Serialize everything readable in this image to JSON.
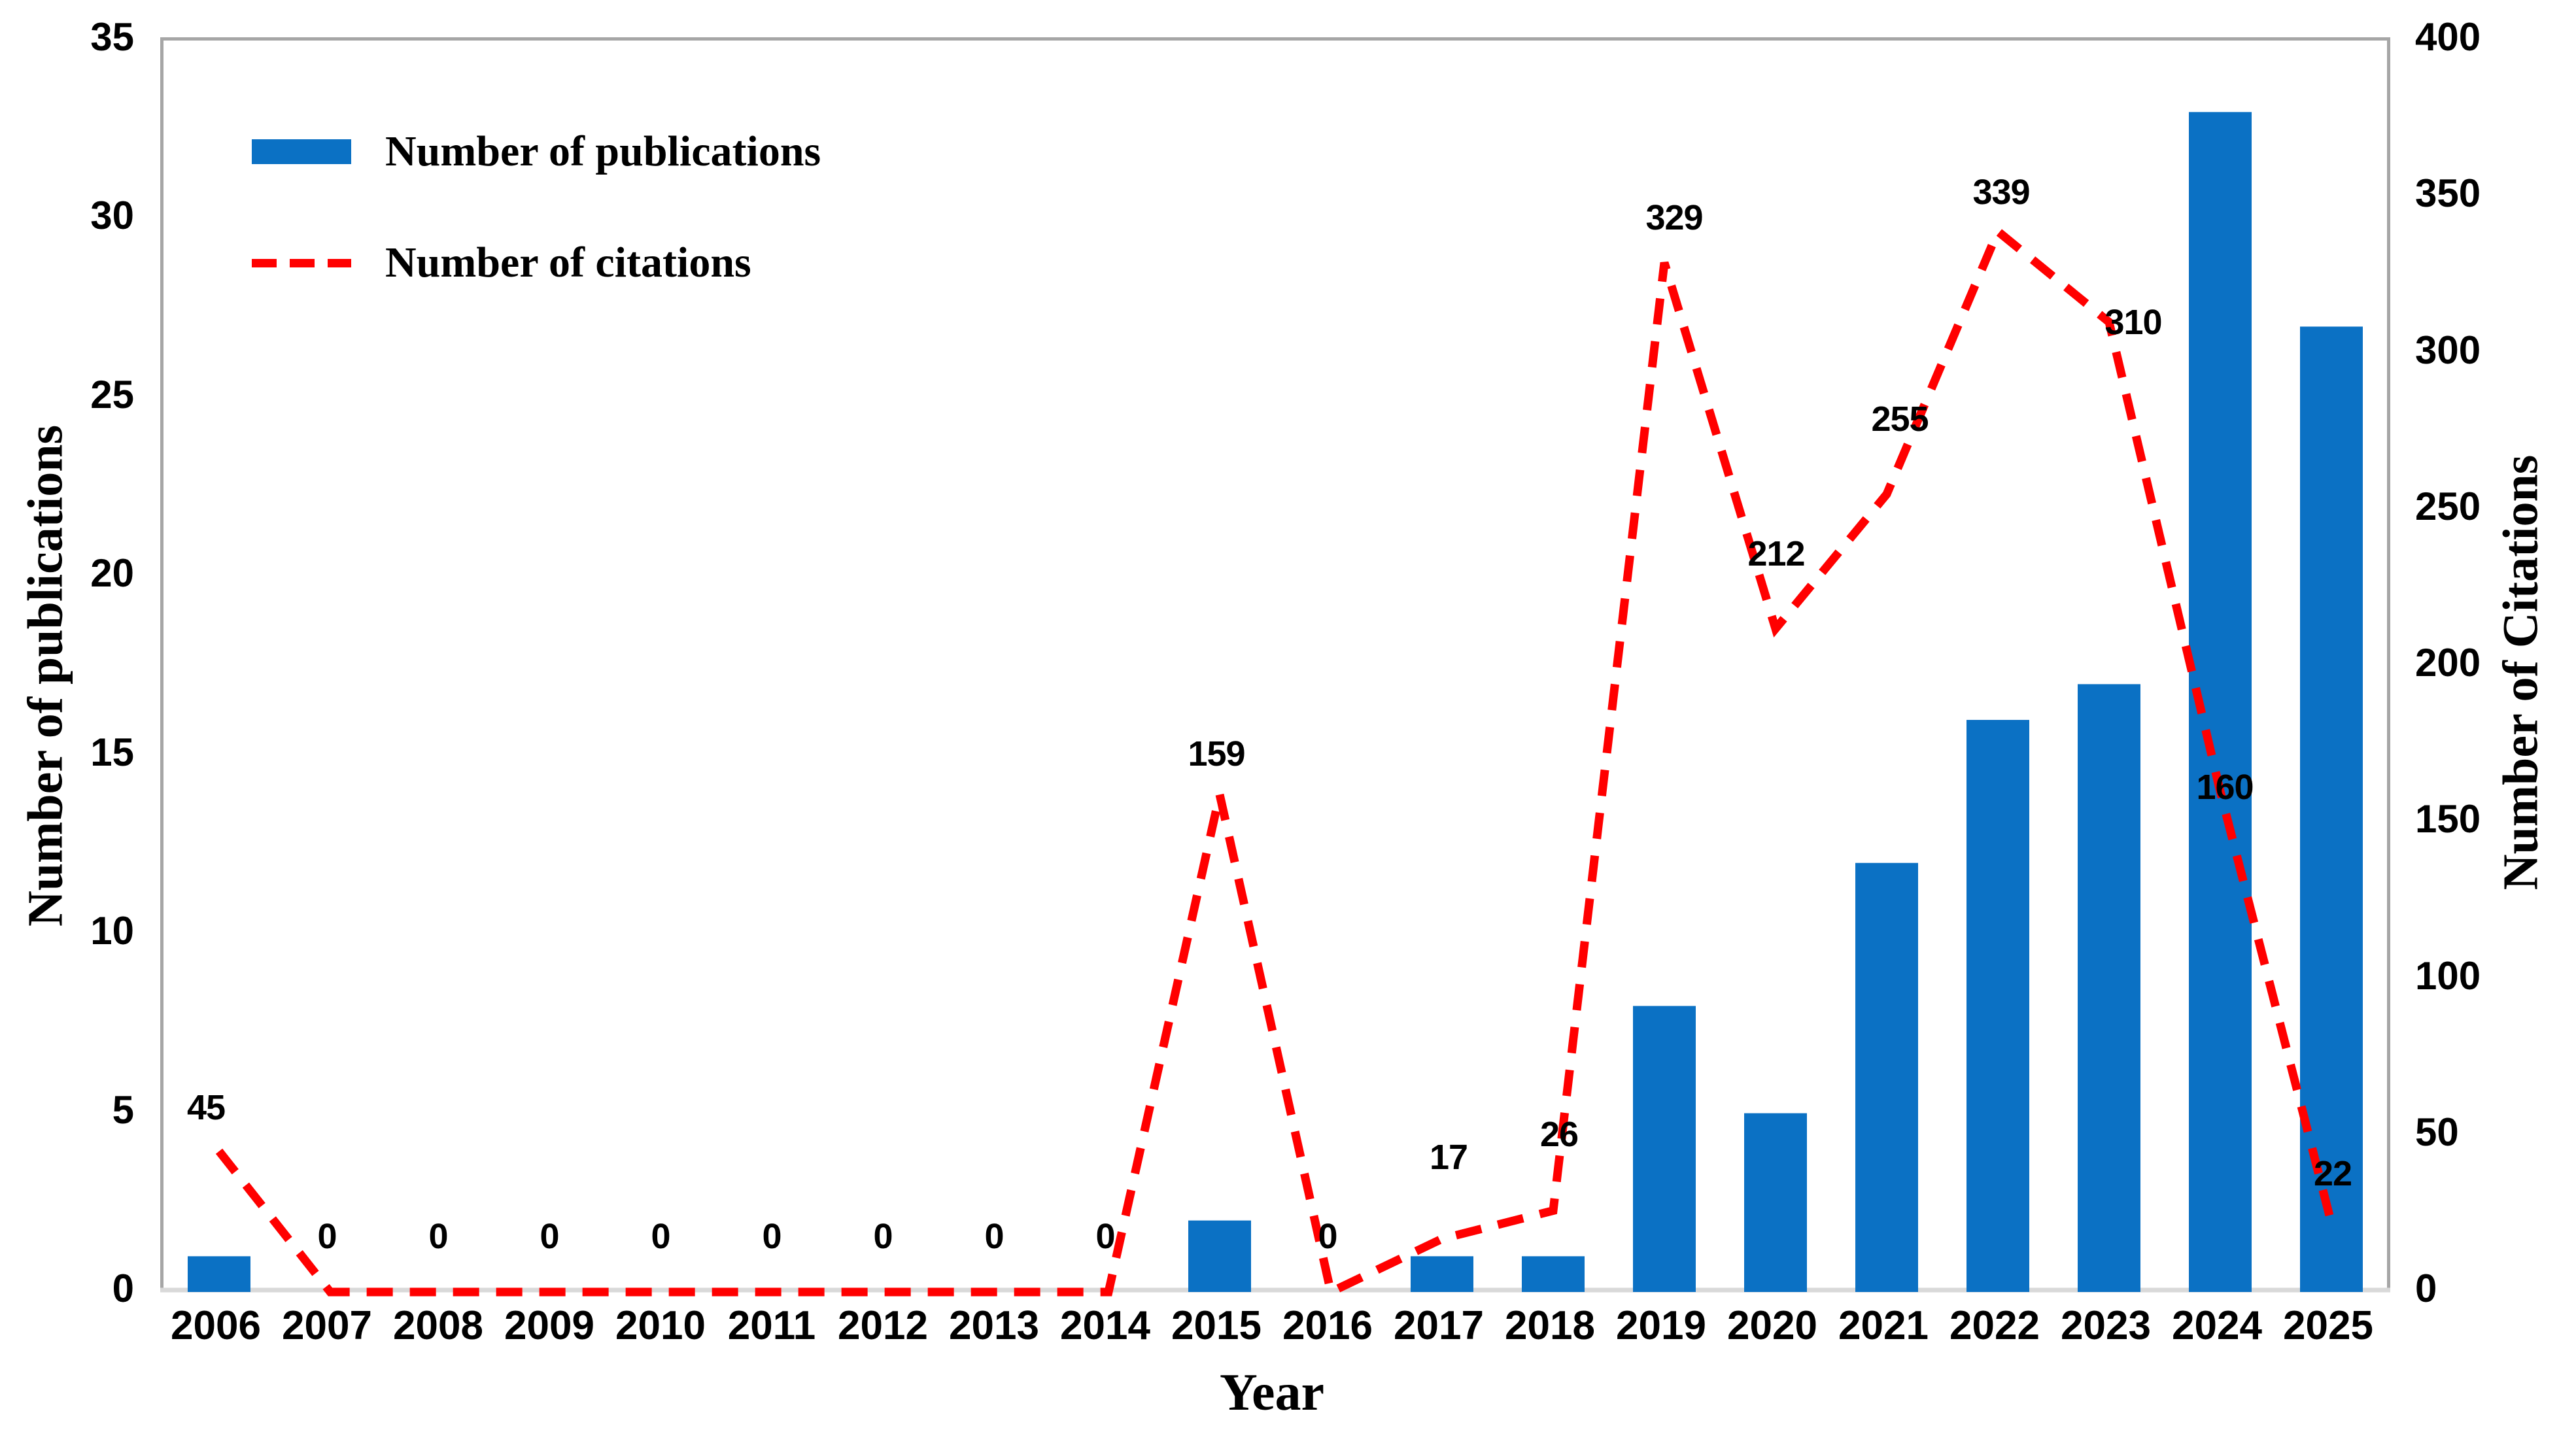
{
  "chart_data": {
    "type": "bar",
    "title": "",
    "categories": [
      "2006",
      "2007",
      "2008",
      "2009",
      "2010",
      "2011",
      "2012",
      "2013",
      "2014",
      "2015",
      "2016",
      "2017",
      "2018",
      "2019",
      "2020",
      "2021",
      "2022",
      "2023",
      "2024",
      "2025"
    ],
    "series": [
      {
        "name": "Number of publications",
        "kind": "bar",
        "axis": "left",
        "values": [
          1,
          0,
          0,
          0,
          0,
          0,
          0,
          0,
          0,
          2,
          0,
          1,
          1,
          8,
          5,
          12,
          16,
          17,
          33,
          27
        ]
      },
      {
        "name": "Number of citations",
        "kind": "dashed-line",
        "axis": "right",
        "data_labels": true,
        "values": [
          45,
          0,
          0,
          0,
          0,
          0,
          0,
          0,
          0,
          159,
          0,
          17,
          26,
          329,
          212,
          255,
          339,
          310,
          160,
          22
        ]
      }
    ],
    "xlabel": "Year",
    "ylabel_left": "Number of publications",
    "ylabel_right": "Number of Citations",
    "ylim_left": [
      0,
      35
    ],
    "yticks_left": [
      "0",
      "5",
      "10",
      "15",
      "20",
      "25",
      "30",
      "35"
    ],
    "ylim_right": [
      0,
      400
    ],
    "yticks_right": [
      "0",
      "50",
      "100",
      "150",
      "200",
      "250",
      "300",
      "350",
      "400"
    ],
    "grid": false,
    "legend_position": "inside-top-left"
  },
  "legend": {
    "publications_label": "Number of publications",
    "citations_label": "Number of citations"
  },
  "colors": {
    "bar": "#0b71c4",
    "line": "#ff0000",
    "plot_border": "#a6a6a6",
    "baseline": "#d9d9d9",
    "text": "#000000"
  }
}
